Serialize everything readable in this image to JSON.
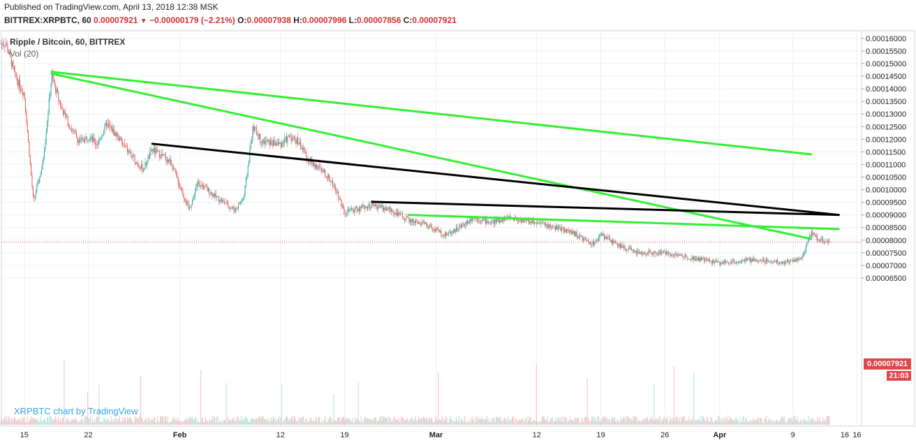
{
  "header": {
    "published": "Published on TradingView.com, April 13, 2018 12:38 MSK",
    "symbol": "BITTREX:XRPBTC, 60",
    "last": "0.00007921",
    "change": "−0.00000179 (−2.21%)",
    "o_label": "O:",
    "o": "0.00007938",
    "h_label": "H:",
    "h": "0.00007996",
    "l_label": "L:",
    "l": "0.00007856",
    "c_label": "C:",
    "c": "0.00007921"
  },
  "legend": {
    "title": "Ripple / Bitcoin, 60, BITTREX",
    "volume": "Vol (20)"
  },
  "watermark": "XRPBTC chart by TradingView",
  "price_tag": "0.00007921",
  "time_tag": "21:03",
  "colors": {
    "up": "#26a69a",
    "down": "#ef5350",
    "green_line": "#33ee33",
    "black_line": "#000000",
    "tag": "#e0474c"
  },
  "chart_data": {
    "type": "candlestick",
    "symbol": "XRPBTC",
    "timeframe": "60",
    "ylim": [
      6.3e-06,
      0.000163
    ],
    "y_ticks": [
      "0.00006500",
      "0.00007000",
      "0.00007500",
      "0.00008000",
      "0.00008500",
      "0.00009000",
      "0.00009500",
      "0.00010000",
      "0.00010500",
      "0.00011000",
      "0.00011500",
      "0.00012000",
      "0.00012500",
      "0.00013000",
      "0.00013500",
      "0.00014000",
      "0.00014500",
      "0.00015000",
      "0.00015500",
      "0.00016000"
    ],
    "x_ticks": [
      "15",
      "22",
      "Feb",
      "12",
      "19",
      "Mar",
      "12",
      "19",
      "26",
      "Apr",
      "9",
      "16"
    ],
    "price_path": [
      [
        "2018-01-13",
        0.000158
      ],
      [
        "2018-01-14",
        0.000145
      ],
      [
        "2018-01-15",
        0.000138
      ],
      [
        "2018-01-16",
        9.5e-05
      ],
      [
        "2018-01-17",
        0.00011
      ],
      [
        "2018-01-18",
        0.000145
      ],
      [
        "2018-01-19",
        0.000133
      ],
      [
        "2018-01-20",
        0.000125
      ],
      [
        "2018-01-21",
        0.000119
      ],
      [
        "2018-01-22",
        0.000121
      ],
      [
        "2018-01-23",
        0.000118
      ],
      [
        "2018-01-24",
        0.000126
      ],
      [
        "2018-01-25",
        0.000122
      ],
      [
        "2018-01-27",
        0.000112
      ],
      [
        "2018-01-28",
        0.000108
      ],
      [
        "2018-01-29",
        0.000116
      ],
      [
        "2018-01-31",
        0.000111
      ],
      [
        "2018-02-02",
        9.2e-05
      ],
      [
        "2018-02-03",
        0.000103
      ],
      [
        "2018-02-05",
        9.7e-05
      ],
      [
        "2018-02-07",
        9.2e-05
      ],
      [
        "2018-02-08",
        9.7e-05
      ],
      [
        "2018-02-09",
        0.000125
      ],
      [
        "2018-02-10",
        0.000119
      ],
      [
        "2018-02-12",
        0.000118
      ],
      [
        "2018-02-13",
        0.000121
      ],
      [
        "2018-02-14",
        0.000119
      ],
      [
        "2018-02-15",
        0.000112
      ],
      [
        "2018-02-17",
        0.000106
      ],
      [
        "2018-02-18",
        0.000101
      ],
      [
        "2018-02-19",
        9.1e-05
      ],
      [
        "2018-02-20",
        9.2e-05
      ],
      [
        "2018-02-22",
        9.4e-05
      ],
      [
        "2018-02-24",
        9.2e-05
      ],
      [
        "2018-02-26",
        8.8e-05
      ],
      [
        "2018-02-28",
        8.6e-05
      ],
      [
        "2018-03-02",
        8.2e-05
      ],
      [
        "2018-03-04",
        8.6e-05
      ],
      [
        "2018-03-05",
        8.9e-05
      ],
      [
        "2018-03-07",
        8.7e-05
      ],
      [
        "2018-03-09",
        8.9e-05
      ],
      [
        "2018-03-10",
        8.8e-05
      ],
      [
        "2018-03-12",
        8.7e-05
      ],
      [
        "2018-03-14",
        8.5e-05
      ],
      [
        "2018-03-16",
        8.3e-05
      ],
      [
        "2018-03-18",
        7.8e-05
      ],
      [
        "2018-03-19",
        8.2e-05
      ],
      [
        "2018-03-21",
        7.8e-05
      ],
      [
        "2018-03-23",
        7.5e-05
      ],
      [
        "2018-03-26",
        7.5e-05
      ],
      [
        "2018-03-29",
        7.3e-05
      ],
      [
        "2018-04-01",
        7.1e-05
      ],
      [
        "2018-04-04",
        7.2e-05
      ],
      [
        "2018-04-06",
        7.2e-05
      ],
      [
        "2018-04-08",
        7.1e-05
      ],
      [
        "2018-04-10",
        7.3e-05
      ],
      [
        "2018-04-11",
        8.3e-05
      ],
      [
        "2018-04-12",
        8e-05
      ],
      [
        "2018-04-13",
        7.92e-05
      ]
    ],
    "last_price": 7.921e-05,
    "trendlines": [
      {
        "color": "green",
        "from": [
          "2018-01-18",
          0.0001467
        ],
        "to": [
          "2018-04-11",
          0.000114
        ]
      },
      {
        "color": "green",
        "from": [
          "2018-01-18",
          0.000146
        ],
        "to": [
          "2018-04-11",
          8.05e-05
        ]
      },
      {
        "color": "black",
        "from": [
          "2018-01-29",
          0.0001182
        ],
        "to": [
          "2018-04-14",
          9e-05
        ]
      },
      {
        "color": "black",
        "from": [
          "2018-02-22",
          9.52e-05
        ],
        "to": [
          "2018-04-14",
          9e-05
        ]
      },
      {
        "color": "green",
        "from": [
          "2018-02-26",
          9e-05
        ],
        "to": [
          "2018-04-14",
          8.44e-05
        ]
      }
    ]
  }
}
